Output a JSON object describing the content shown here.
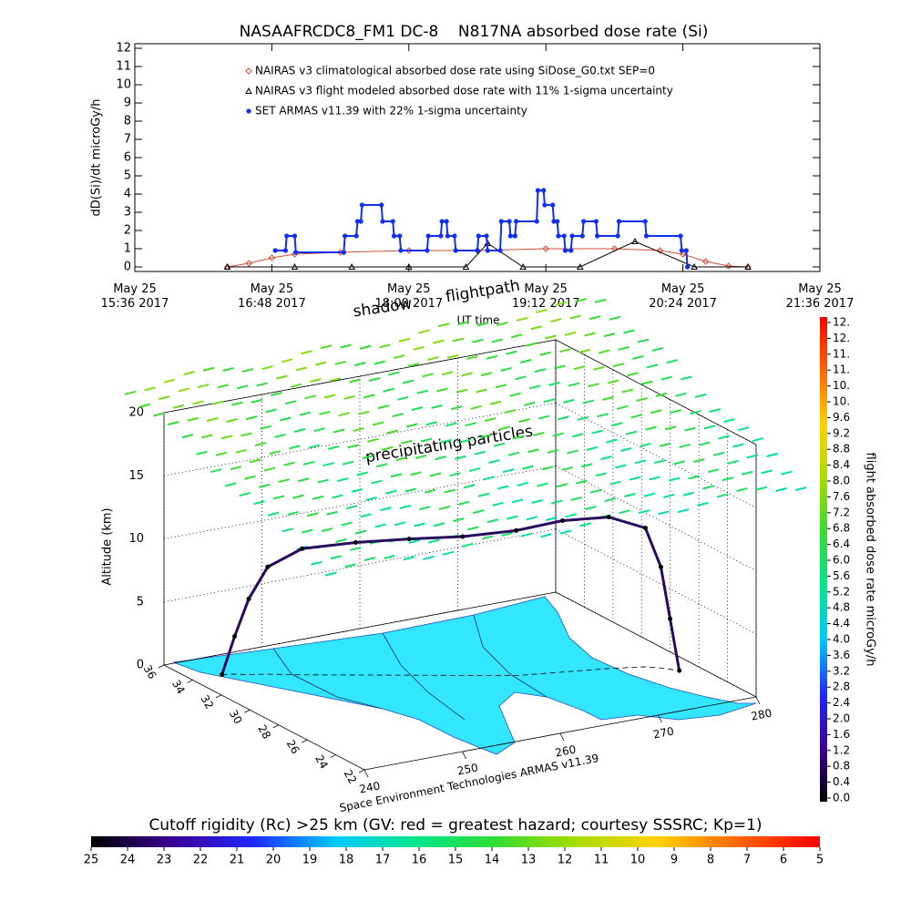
{
  "chart_data": [
    {
      "type": "line",
      "title": "NASAAFRCDC8_FM1 DC-8    N817NA absorbed dose rate (Si)",
      "y_label": "dD(Si)/dt microGy/h",
      "x_label": "UT time",
      "xlim": [
        15.6,
        21.6
      ],
      "xticks": [
        {
          "value": 15.6,
          "label": "May 25\n15:36 2017"
        },
        {
          "value": 16.8,
          "label": "May 25\n16:48 2017"
        },
        {
          "value": 18.0,
          "label": "May 25\n18:00 2017"
        },
        {
          "value": 19.2,
          "label": "May 25\n19:12 2017"
        },
        {
          "value": 20.4,
          "label": "May 25\n20:24 2017"
        },
        {
          "value": 21.6,
          "label": "May 25\n21:36 2017"
        }
      ],
      "ylim": [
        -0.25,
        12.25
      ],
      "yticks": [
        0,
        1,
        2,
        3,
        4,
        5,
        6,
        7,
        8,
        9,
        10,
        11,
        12
      ],
      "series": [
        {
          "name": "NAIRAS v3 climatological absorbed dose rate using SiDose_G0.txt SEP=0",
          "color": "#d0503c",
          "marker": "diamond",
          "x": [
            16.41,
            16.6,
            16.8,
            17.0,
            17.4,
            18.0,
            18.6,
            19.2,
            19.8,
            20.2,
            20.4,
            20.6,
            20.8,
            20.97
          ],
          "values": [
            0,
            0.2,
            0.5,
            0.7,
            0.8,
            0.9,
            0.9,
            1.0,
            1.0,
            0.9,
            0.7,
            0.3,
            0.05,
            0
          ]
        },
        {
          "name": "NAIRAS v3 flight modeled absorbed dose rate with 11% 1-sigma uncertainty",
          "color": "#000000",
          "marker": "triangle",
          "x": [
            16.41,
            17.0,
            17.5,
            18.0,
            18.5,
            18.69,
            19.0,
            19.5,
            19.98,
            20.5,
            20.97
          ],
          "values": [
            0,
            0,
            0,
            0,
            0,
            1.3,
            0,
            0,
            1.4,
            0,
            0
          ]
        },
        {
          "name": "SET ARMAS v11.39 with 22% 1-sigma uncertainty",
          "color": "#1030f0",
          "marker": "circle",
          "x": [
            16.83,
            16.92,
            16.93,
            17.0,
            17.01,
            17.43,
            17.44,
            17.54,
            17.55,
            17.58,
            17.59,
            17.76,
            17.77,
            17.86,
            17.87,
            17.92,
            17.93,
            18.16,
            18.17,
            18.28,
            18.29,
            18.33,
            18.34,
            18.4,
            18.41,
            18.6,
            18.61,
            18.68,
            18.69,
            18.8,
            18.81,
            18.88,
            18.89,
            18.93,
            18.94,
            19.12,
            19.13,
            19.18,
            19.19,
            19.26,
            19.27,
            19.3,
            19.31,
            19.36,
            19.37,
            19.42,
            19.43,
            19.52,
            19.53,
            19.64,
            19.65,
            19.83,
            19.84,
            20.07,
            20.08,
            20.38,
            20.39,
            20.43,
            20.44
          ],
          "values": [
            0.9,
            0.9,
            1.7,
            1.7,
            0.8,
            0.8,
            1.7,
            1.7,
            2.5,
            2.5,
            3.4,
            3.4,
            2.5,
            2.5,
            1.7,
            1.7,
            0.9,
            0.9,
            1.7,
            1.7,
            2.5,
            2.5,
            1.7,
            1.7,
            0.9,
            0.9,
            1.7,
            1.7,
            0.9,
            0.9,
            2.5,
            2.5,
            1.7,
            1.7,
            2.5,
            2.5,
            4.2,
            4.2,
            3.4,
            3.4,
            2.5,
            2.5,
            1.7,
            1.7,
            0.9,
            0.9,
            1.7,
            1.7,
            2.5,
            2.5,
            1.7,
            1.7,
            2.5,
            2.5,
            1.7,
            1.7,
            0.9,
            0.9,
            0
          ]
        }
      ]
    },
    {
      "type": "scatter3d",
      "annotations": [
        "shadow",
        "flightpath",
        "precipitating particles"
      ],
      "z_label": "Altitude (km)",
      "credit": "Space Environment Technologies ARMAS v11.39",
      "zlim": [
        0,
        20
      ],
      "zticks": [
        0,
        5,
        10,
        15,
        20
      ],
      "latlim": [
        22,
        36
      ],
      "latticks": [
        36,
        34,
        32,
        30,
        28,
        26,
        24,
        22
      ],
      "lonlim": [
        240,
        280
      ],
      "lonticks": [
        240,
        250,
        260,
        270,
        280
      ],
      "color": "#2a0a5e",
      "lon": [
        243,
        244,
        245,
        246.5,
        249,
        253,
        257,
        261,
        265,
        269,
        273,
        276,
        277,
        277.5,
        278
      ],
      "lat": [
        34,
        33.8,
        33.5,
        33.2,
        32.5,
        31.5,
        30.5,
        29.5,
        28.5,
        28,
        27.5,
        27,
        26.6,
        26.3,
        26
      ],
      "alt": [
        0,
        3,
        6,
        8.5,
        10,
        10.5,
        10.8,
        11,
        11.5,
        12,
        12,
        11,
        8,
        4,
        0
      ]
    },
    {
      "type": "colorbar",
      "label": "flight absorbed dose rate microGy/h",
      "lim": [
        0,
        12
      ],
      "ticks": [
        {
          "value": 0,
          "label": "0.0"
        },
        0.4,
        0.8,
        1.2,
        1.6,
        {
          "value": 2,
          "label": "2.0"
        },
        2.4,
        2.8,
        3.2,
        3.6,
        {
          "value": 4,
          "label": "4.0"
        },
        4.4,
        4.8,
        5.2,
        5.6,
        {
          "value": 6,
          "label": "6.0"
        },
        6.4,
        6.8,
        7.2,
        7.6,
        {
          "value": 8,
          "label": "8.0"
        },
        8.4,
        8.8,
        9.2,
        9.6,
        {
          "value": 10,
          "label": "10."
        },
        {
          "value": 10.4,
          "label": "10."
        },
        {
          "value": 10.8,
          "label": "11."
        },
        {
          "value": 11.2,
          "label": "11."
        },
        {
          "value": 11.6,
          "label": "12."
        },
        {
          "value": 12,
          "label": "12."
        }
      ],
      "colors": [
        "#000000",
        "#3c0096",
        "#1e28ff",
        "#00c8ff",
        "#00e68c",
        "#32dc32",
        "#aadc00",
        "#ffd200",
        "#ff6400",
        "#ff0000"
      ]
    },
    {
      "type": "colorbar",
      "label": "Cutoff rigidity (Rc) >25 km (GV: red = greatest hazard; courtesy SSSRC; Kp=1)",
      "lim": [
        25,
        5
      ],
      "ticks": [
        25,
        24,
        23,
        22,
        21,
        20,
        19,
        18,
        17,
        16,
        15,
        14,
        13,
        12,
        11,
        10,
        9,
        8,
        7,
        6,
        5
      ],
      "colors": [
        "#000000",
        "#3c0096",
        "#1e28ff",
        "#00c8ff",
        "#00e68c",
        "#32dc32",
        "#aadc00",
        "#ffd200",
        "#ff6400",
        "#ff0000"
      ]
    }
  ]
}
